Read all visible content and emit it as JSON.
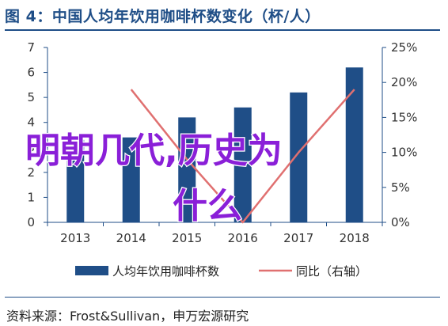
{
  "title": "图 4：中国人均年饮用咖啡杯数变化（杯/人）",
  "source": "资料来源：Frost&Sullivan，申万宏源研究",
  "overlay_text": [
    "明朝几代,历史为",
    "什么"
  ],
  "chart_data": {
    "type": "bar",
    "categories": [
      "2013",
      "2014",
      "2015",
      "2016",
      "2017",
      "2018"
    ],
    "series": [
      {
        "name": "人均年饮用咖啡杯数",
        "type": "bar",
        "axis": "left",
        "color": "#1f4e87",
        "values": [
          3.3,
          3.4,
          4.2,
          4.6,
          5.2,
          6.2
        ]
      },
      {
        "name": "同比（右轴）",
        "type": "line",
        "axis": "right",
        "color": "#e07070",
        "values": [
          null,
          19,
          9,
          0,
          10,
          19
        ]
      }
    ],
    "y_left": {
      "min": 0,
      "max": 7,
      "ticks": [
        "0",
        "1",
        "2",
        "3",
        "4",
        "5",
        "6",
        "7"
      ]
    },
    "y_right": {
      "min": 0,
      "max": 25,
      "ticks": [
        "0%",
        "5%",
        "10%",
        "15%",
        "20%",
        "25%"
      ]
    },
    "legend_position": "bottom",
    "grid": false
  }
}
